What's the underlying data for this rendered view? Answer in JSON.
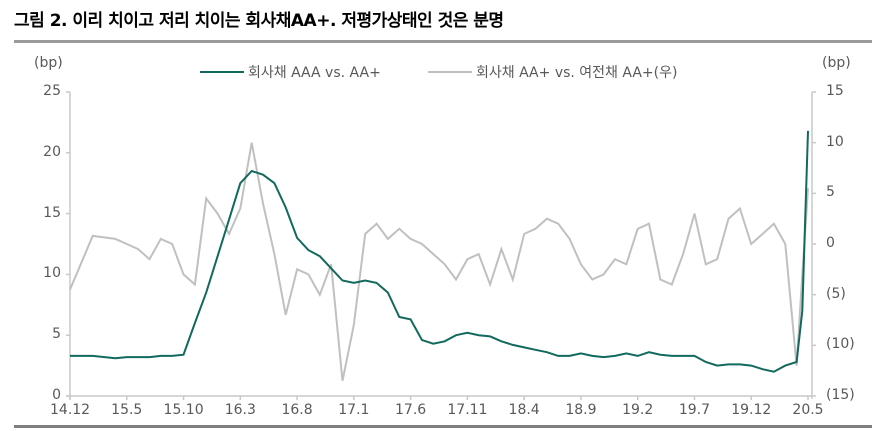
{
  "title": "그림 2. 이리 치이고 저리 치이는 회사채AA+. 저평가상태인 것은 분명",
  "colors": {
    "series1": "#12695e",
    "series2": "#c0c0c0",
    "axis": "#c8c8c8",
    "title_rule": "#9a9a9a",
    "bottom_rule": "#7f7f7f"
  },
  "chart_data": {
    "type": "line",
    "title": "그림 2. 이리 치이고 저리 치이는 회사채AA+. 저평가상태인 것은 분명",
    "xlabel": "",
    "ylabel": "(bp)",
    "y2label": "(bp)",
    "ylim": [
      0,
      25
    ],
    "y2lim": [
      -15,
      15
    ],
    "yticks": [
      "0",
      "5",
      "10",
      "15",
      "20",
      "25"
    ],
    "y2ticks": [
      "(15)",
      "(10)",
      "(5)",
      "0",
      "5",
      "10",
      "15"
    ],
    "xticks": [
      "14.12",
      "15.5",
      "15.10",
      "16.3",
      "16.8",
      "17.1",
      "17.6",
      "17.11",
      "18.4",
      "18.9",
      "19.2",
      "19.7",
      "19.12",
      "20.5"
    ],
    "grid": false,
    "legend_position": "top",
    "x": [
      0,
      2,
      4,
      5,
      6,
      7,
      8,
      9,
      10,
      11,
      12,
      13,
      14,
      15,
      16,
      17,
      18,
      19,
      20,
      21,
      22,
      23,
      24,
      25,
      26,
      27,
      28,
      29,
      30,
      31,
      32,
      33,
      34,
      35,
      36,
      37,
      38,
      39,
      40,
      41,
      42,
      43,
      44,
      45,
      46,
      47,
      48,
      49,
      50,
      51,
      52,
      53,
      54,
      55,
      56,
      57,
      58,
      59,
      60,
      61,
      62,
      63,
      64,
      64.5,
      65
    ],
    "series": [
      {
        "name": "회사채 AAA vs. AA+",
        "axis": "left",
        "values": [
          3.3,
          3.3,
          3.1,
          3.2,
          3.2,
          3.2,
          3.3,
          3.3,
          3.4,
          6.0,
          8.5,
          11.5,
          14.5,
          17.5,
          18.5,
          18.2,
          17.5,
          15.5,
          13.0,
          12.0,
          11.5,
          10.5,
          9.5,
          9.3,
          9.5,
          9.3,
          8.5,
          6.5,
          6.3,
          4.6,
          4.3,
          4.5,
          5.0,
          5.2,
          5.0,
          4.9,
          4.5,
          4.2,
          4.0,
          3.8,
          3.6,
          3.3,
          3.3,
          3.5,
          3.3,
          3.2,
          3.3,
          3.5,
          3.3,
          3.6,
          3.4,
          3.3,
          3.3,
          3.3,
          2.8,
          2.5,
          2.6,
          2.6,
          2.5,
          2.2,
          2.0,
          2.5,
          2.8,
          7.0,
          21.8
        ]
      },
      {
        "name": "회사채 AA+ vs. 여전채 AA+(우)",
        "axis": "right",
        "values": [
          -4.5,
          0.8,
          0.5,
          0.0,
          -0.5,
          -1.5,
          0.5,
          0.0,
          -3.0,
          -4.0,
          4.5,
          3.0,
          1.0,
          3.5,
          10.0,
          4.0,
          -1.0,
          -7.0,
          -2.5,
          -3.0,
          -5.0,
          -2.0,
          -13.5,
          -8.0,
          1.0,
          2.0,
          0.5,
          1.5,
          0.5,
          0.0,
          -1.0,
          -2.0,
          -3.5,
          -1.5,
          -1.0,
          -4.0,
          -0.5,
          -3.5,
          1.0,
          1.5,
          2.5,
          2.0,
          0.5,
          -2.0,
          -3.5,
          -3.0,
          -1.5,
          -2.0,
          1.5,
          2.0,
          -3.5,
          -4.0,
          -1.0,
          3.0,
          -2.0,
          -1.5,
          2.5,
          3.5,
          0.0,
          1.0,
          2.0,
          0.0,
          -12.0,
          -3.0,
          5.5
        ]
      }
    ]
  },
  "axes": {
    "left_unit": "(bp)",
    "right_unit": "(bp)"
  },
  "legend": [
    {
      "label": "회사채 AAA vs. AA+",
      "color": "#12695e"
    },
    {
      "label": "회사채 AA+ vs. 여전채 AA+(우)",
      "color": "#c0c0c0"
    }
  ]
}
